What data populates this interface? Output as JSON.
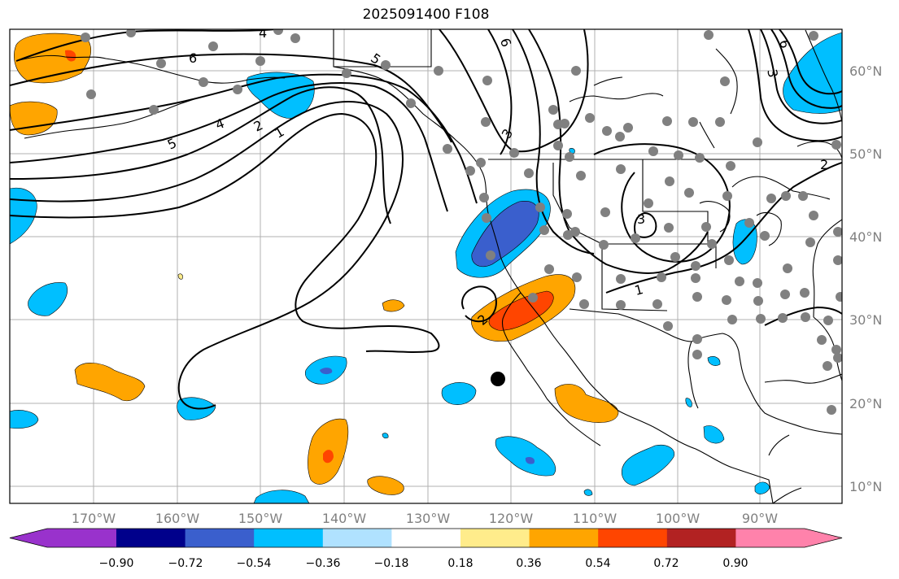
{
  "title": "2025091400 F108",
  "map": {
    "lon_ticks": [
      "170°W",
      "160°W",
      "150°W",
      "140°W",
      "130°W",
      "120°W",
      "110°W",
      "100°W",
      "90°W"
    ],
    "lat_ticks": [
      "60°N",
      "50°N",
      "40°N",
      "30°N",
      "20°N",
      "10°N"
    ],
    "contour_labels": [
      "6",
      "5",
      "4",
      "2",
      "1",
      "5",
      "6",
      "3",
      "2",
      "3",
      "1",
      "2",
      "4",
      "6",
      "3"
    ]
  },
  "colorbar": {
    "labels": [
      "−0.90",
      "−0.72",
      "−0.54",
      "−0.36",
      "−0.18",
      "0.18",
      "0.36",
      "0.54",
      "0.72",
      "0.90"
    ],
    "colors": [
      "#9932CC",
      "#00008B",
      "#3A5FCD",
      "#00BFFF",
      "#B0E2FF",
      "#FFFFFF",
      "#FFEC8B",
      "#FFA500",
      "#FF4500",
      "#B22222",
      "#FF82AB"
    ]
  }
}
